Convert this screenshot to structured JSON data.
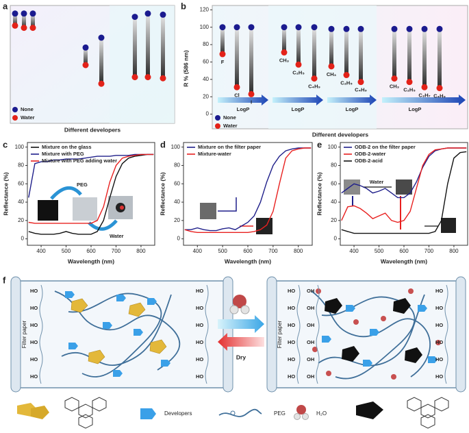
{
  "chart_data": [
    {
      "type": "dumbbell",
      "panel_label": "a",
      "xlabel": "Different developers",
      "categories": [
        null,
        null,
        null,
        null,
        null,
        null,
        null,
        null
      ],
      "series": [
        {
          "name": "None",
          "color": "#1b1b8f",
          "values": [
            97,
            97,
            97,
            66,
            75,
            94,
            97,
            96
          ]
        },
        {
          "name": "Water",
          "color": "#e32219",
          "values": [
            86,
            84,
            84,
            50,
            33,
            39,
            39,
            38
          ]
        }
      ],
      "ylim": [
        0,
        100
      ]
    },
    {
      "type": "dumbbell",
      "panel_label": "b",
      "ylabel": "R % (586 nm)",
      "xlabel": "Different developers",
      "categories": [
        "F",
        "Cl",
        "I",
        "CH₃",
        "C₂H₅",
        "C₄H₉",
        "CH₃",
        "C₂H₅",
        "C₄H₉",
        "CH₃",
        "C₂H₅",
        "C₃H₇",
        "C₄H₉"
      ],
      "series": [
        {
          "name": "None",
          "color": "#1b1b8f",
          "values": [
            100,
            100,
            100,
            100,
            100,
            100,
            98,
            98,
            98,
            98,
            98,
            98,
            98
          ]
        },
        {
          "name": "Water",
          "color": "#e32219",
          "values": [
            69,
            31,
            23,
            71,
            57,
            41,
            55,
            45,
            37,
            41,
            37,
            31,
            30
          ]
        }
      ],
      "ylim": [
        -20,
        125
      ],
      "yticks": [
        0,
        20,
        40,
        60,
        80,
        100,
        120
      ],
      "annotations": [
        "LogP",
        "LogP",
        "LogP",
        "LogP"
      ]
    },
    {
      "type": "line",
      "panel_label": "c",
      "xlabel": "Wavelength (nm)",
      "ylabel": "Reflectance (%)",
      "x": [
        350,
        375,
        400,
        425,
        450,
        475,
        500,
        525,
        550,
        575,
        600,
        625,
        650,
        675,
        700,
        725,
        750,
        775,
        800,
        825,
        850
      ],
      "series": [
        {
          "name": "Mixture on the glass",
          "color": "#111111",
          "values": [
            8,
            6,
            5,
            5,
            5,
            6,
            8,
            6,
            5,
            5,
            5,
            8,
            20,
            45,
            68,
            82,
            88,
            90,
            91,
            92,
            92
          ]
        },
        {
          "name": "Mixture with PEG",
          "color": "#1f1f8a",
          "values": [
            45,
            82,
            84,
            84,
            86,
            86,
            87,
            87,
            87,
            88,
            89,
            90,
            90,
            90,
            91,
            91,
            91,
            92,
            92,
            92,
            92
          ]
        },
        {
          "name": "Mixture with PEG adding water",
          "color": "#e8201f",
          "values": [
            18,
            17,
            17,
            17,
            17,
            17,
            17,
            17,
            17,
            17,
            17,
            20,
            35,
            62,
            80,
            88,
            90,
            91,
            92,
            92,
            92
          ]
        }
      ],
      "xlim": [
        345,
        855
      ],
      "xticks": [
        400,
        500,
        600,
        700,
        800
      ],
      "ylim": [
        -7,
        105
      ],
      "yticks": [
        0,
        20,
        40,
        60,
        80,
        100
      ],
      "annotations": [
        "PEG",
        "Water"
      ]
    },
    {
      "type": "line",
      "panel_label": "d",
      "xlabel": "Wavelength (nm)",
      "ylabel": "Reflectance (%)",
      "x": [
        350,
        375,
        400,
        425,
        450,
        475,
        500,
        525,
        550,
        575,
        600,
        625,
        650,
        675,
        700,
        725,
        750,
        775,
        800,
        825,
        850
      ],
      "series": [
        {
          "name": "Mixture on the filter paper",
          "color": "#1f1f8a",
          "values": [
            10,
            10,
            12,
            10,
            9,
            9,
            11,
            12,
            10,
            14,
            18,
            25,
            40,
            62,
            80,
            90,
            96,
            98,
            99,
            99,
            99
          ]
        },
        {
          "name": "Mixture-water",
          "color": "#e8201f",
          "values": [
            10,
            8,
            7,
            7,
            7,
            7,
            7,
            7,
            7,
            7,
            7,
            8,
            10,
            15,
            30,
            60,
            88,
            96,
            98,
            99,
            99
          ]
        }
      ],
      "xlim": [
        345,
        855
      ],
      "xticks": [
        400,
        500,
        600,
        700,
        800
      ],
      "ylim": [
        -7,
        105
      ],
      "yticks": [
        0,
        20,
        40,
        60,
        80,
        100
      ]
    },
    {
      "type": "line",
      "panel_label": "e",
      "xlabel": "Wavelength (nm)",
      "ylabel": "Reflectance (%)",
      "x": [
        350,
        375,
        400,
        425,
        450,
        475,
        500,
        525,
        550,
        575,
        600,
        625,
        650,
        675,
        700,
        725,
        750,
        775,
        800,
        825,
        850
      ],
      "series": [
        {
          "name": "ODB-2 on the filter paper",
          "color": "#1f1f8a",
          "values": [
            50,
            55,
            60,
            58,
            55,
            50,
            52,
            55,
            50,
            45,
            45,
            50,
            62,
            78,
            90,
            96,
            98,
            99,
            99,
            99,
            99
          ]
        },
        {
          "name": "ODB-2-water",
          "color": "#e8201f",
          "values": [
            20,
            35,
            36,
            33,
            28,
            22,
            25,
            28,
            20,
            18,
            20,
            30,
            55,
            80,
            92,
            97,
            98,
            99,
            99,
            99,
            99
          ]
        },
        {
          "name": "ODB-2-acid",
          "color": "#111111",
          "values": [
            10,
            8,
            6,
            6,
            6,
            6,
            6,
            6,
            6,
            6,
            6,
            6,
            6,
            6,
            6,
            8,
            20,
            60,
            88,
            94,
            95
          ]
        }
      ],
      "xlim": [
        345,
        855
      ],
      "xticks": [
        400,
        500,
        600,
        700,
        800
      ],
      "ylim": [
        -7,
        105
      ],
      "yticks": [
        0,
        20,
        40,
        60,
        80,
        100
      ],
      "annotations": [
        "Water"
      ]
    }
  ],
  "schematic": {
    "panel_label": "f",
    "substrate_label": "Filter paper",
    "hydroxyl": "HO",
    "hydroxyl_alt": "OH",
    "process_label": "Dry",
    "legend": [
      "Developers",
      "PEG",
      "H₂O"
    ]
  }
}
